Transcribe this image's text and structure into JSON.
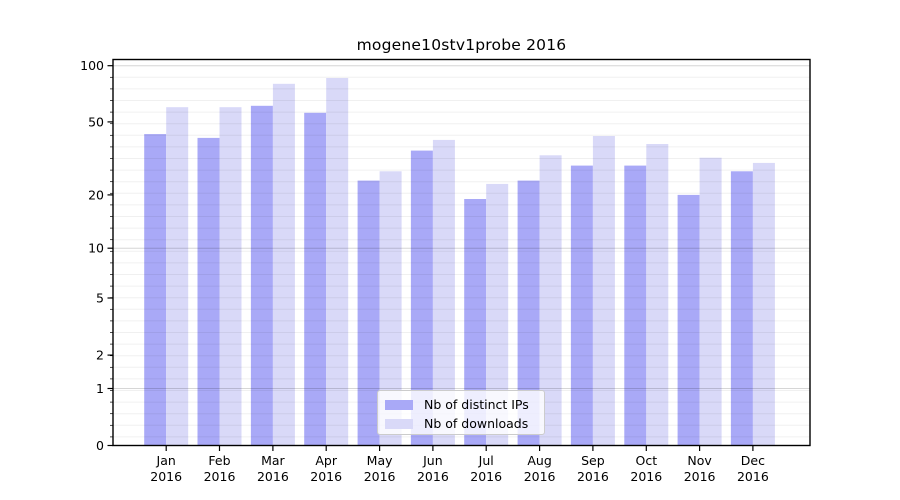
{
  "title": "mogene10stv1probe 2016",
  "axes": {
    "y_tick_labels": [
      "100",
      "50",
      "20",
      "10",
      "5",
      "2",
      "1",
      "0"
    ],
    "x_year_label": "2016"
  },
  "legend": {
    "items": [
      {
        "label": "Nb of distinct IPs",
        "color": "#a9a9f7"
      },
      {
        "label": "Nb of downloads",
        "color": "#d9d9f8"
      }
    ]
  },
  "colors": {
    "bar_dark": "#a9a9f7",
    "bar_light": "#d9d9f8",
    "grid_major": "#d6d6d6",
    "grid_minor": "#f0f0f0",
    "spine": "#000000",
    "text": "#000000",
    "legend_border": "#cccccc"
  },
  "chart_data": {
    "type": "bar",
    "title": "mogene10stv1probe 2016",
    "categories": [
      "Jan 2016",
      "Feb 2016",
      "Mar 2016",
      "Apr 2016",
      "May 2016",
      "Jun 2016",
      "Jul 2016",
      "Aug 2016",
      "Sep 2016",
      "Oct 2016",
      "Nov 2016",
      "Dec 2016"
    ],
    "month_labels": [
      "Jan",
      "Feb",
      "Mar",
      "Apr",
      "May",
      "Jun",
      "Jul",
      "Aug",
      "Sep",
      "Oct",
      "Nov",
      "Dec"
    ],
    "series": [
      {
        "name": "Nb of distinct IPs",
        "color": "#a9a9f7",
        "values": [
          43,
          41,
          61,
          56,
          24,
          35,
          19,
          24,
          29,
          29,
          20,
          27
        ]
      },
      {
        "name": "Nb of downloads",
        "color": "#d9d9f8",
        "values": [
          60,
          60,
          80,
          86,
          27,
          40,
          23,
          33,
          42,
          38,
          32,
          30
        ]
      }
    ],
    "xlabel": "",
    "ylabel": "",
    "yscale": "log10(1+x)",
    "y_ticks": [
      0,
      1,
      2,
      5,
      10,
      20,
      50,
      100
    ],
    "ylim": [
      0,
      108
    ],
    "grid": true,
    "legend_position": "lower center"
  }
}
